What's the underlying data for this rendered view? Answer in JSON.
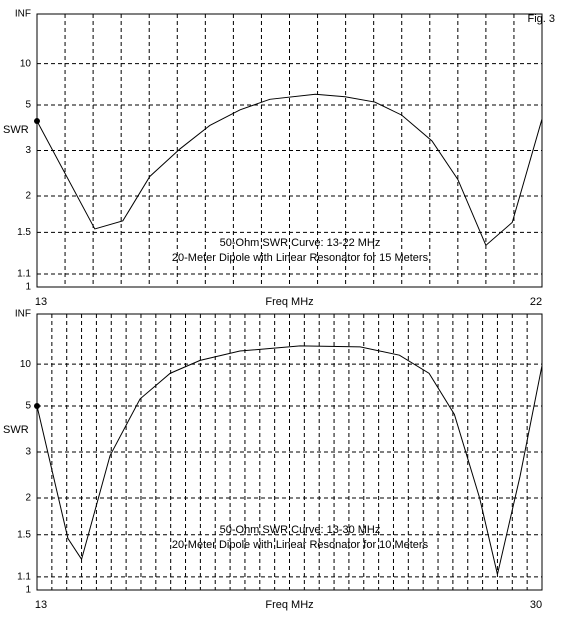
{
  "chart_data": [
    {
      "type": "line",
      "figure_label": "Fig. 3",
      "title": "50-Ohm SWR Curve: 13-22 MHz",
      "subtitle": "20-Meter Dipole with Linear Resonator for 15 Meters",
      "x_label": "Freq MHz",
      "y_label": "SWR",
      "y_scale": "reflection",
      "xlim": [
        13,
        22
      ],
      "xticks": [
        13,
        22
      ],
      "xgrid_step": 0.5,
      "ylim": [
        1,
        null
      ],
      "yticks": [
        1,
        1.1,
        1.5,
        2,
        3,
        5,
        10,
        {
          "value": null,
          "label": "INF"
        }
      ],
      "grid": true,
      "color": "#000000",
      "x": [
        13,
        14.03,
        14.53,
        15.01,
        15.55,
        16.08,
        16.62,
        17.15,
        17.96,
        18.49,
        19.02,
        19.5,
        20.04,
        20.5,
        21.0,
        21.47,
        22
      ],
      "values": [
        4.1,
        1.54,
        1.64,
        2.36,
        3.05,
        3.9,
        4.7,
        5.4,
        5.8,
        5.6,
        5.2,
        4.4,
        3.3,
        2.3,
        1.36,
        1.62,
        4.2
      ]
    },
    {
      "type": "line",
      "title": "50-Ohm SWR Curve: 13-30 MHz",
      "subtitle": "20-Meter Dipole with Linear Resonator for 10 Meters",
      "x_label": "Freq MHz",
      "y_label": "SWR",
      "y_scale": "reflection",
      "xlim": [
        13,
        30
      ],
      "xticks": [
        13,
        30
      ],
      "xgrid_step": 0.5,
      "ylim": [
        1,
        null
      ],
      "yticks": [
        1,
        1.1,
        1.5,
        2,
        3,
        5,
        10,
        {
          "value": null,
          "label": "INF"
        }
      ],
      "grid": true,
      "color": "#000000",
      "x": [
        13,
        14.04,
        14.5,
        15.46,
        16.47,
        17.48,
        18.49,
        19.83,
        21.86,
        23.88,
        25.2,
        26.2,
        27.05,
        27.9,
        28.5,
        29.26,
        30
      ],
      "values": [
        5,
        1.46,
        1.25,
        2.9,
        5.5,
        8.3,
        10.9,
        13.9,
        16.3,
        15.8,
        12.4,
        8.3,
        4.5,
        2.0,
        1.12,
        2.4,
        9.7
      ]
    }
  ]
}
